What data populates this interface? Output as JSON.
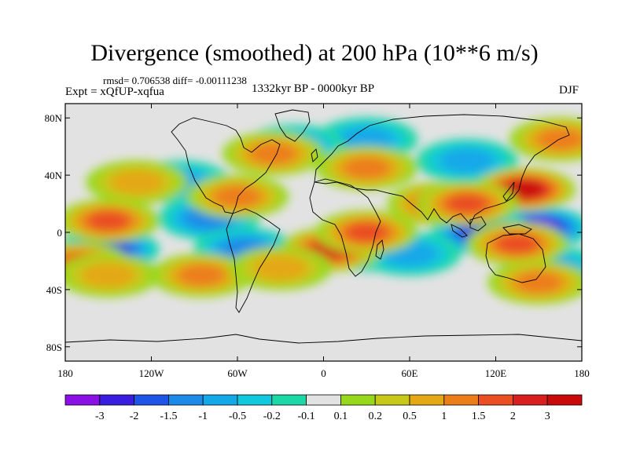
{
  "title": "Divergence (smoothed) at 200 hPa (10**6 m/s)",
  "stats": "rmsd= 0.706538  diff= -0.00111238",
  "experiment": "Expt = xQfUP-xqfua",
  "period": "1332kyr BP - 0000kyr BP",
  "season": "DJF",
  "x_ticks": [
    "180",
    "120W",
    "60W",
    "0",
    "60E",
    "120E",
    "180"
  ],
  "y_ticks": [
    "80N",
    "40N",
    "0",
    "40S",
    "80S"
  ],
  "colorbar": {
    "labels": [
      "-3",
      "-2",
      "-1.5",
      "-1",
      "-0.5",
      "-0.2",
      "-0.1",
      "0.1",
      "0.2",
      "0.5",
      "1",
      "1.5",
      "2",
      "3"
    ],
    "colors": [
      "#8a10e6",
      "#3a1ee0",
      "#1e55e6",
      "#1b8ae8",
      "#13a8e8",
      "#12c8dc",
      "#1bd8a6",
      "#e2e2e2",
      "#98d81c",
      "#c8c81a",
      "#e4a814",
      "#ec7e1a",
      "#ea4e22",
      "#d81e1e",
      "#c80a0a"
    ]
  },
  "chart_data": {
    "type": "heatmap",
    "title": "Divergence (smoothed) at 200 hPa (10**6 m/s)",
    "units": "10**6 m/s",
    "x_range": [
      -180,
      180
    ],
    "y_range": [
      -90,
      90
    ],
    "levels": [
      -3,
      -2,
      -1.5,
      -1,
      -0.5,
      -0.2,
      -0.1,
      0.1,
      0.2,
      0.5,
      1,
      1.5,
      2,
      3
    ],
    "anomalies": [
      {
        "lon": 150,
        "lat": 3,
        "value": -3
      },
      {
        "lon": 110,
        "lat": 0,
        "value": -2.2
      },
      {
        "lon": -150,
        "lat": -12,
        "value": -2.5
      },
      {
        "lon": 30,
        "lat": -12,
        "value": -1.5
      },
      {
        "lon": -80,
        "lat": 10,
        "value": -1.2
      },
      {
        "lon": -55,
        "lat": -12,
        "value": -1
      },
      {
        "lon": -100,
        "lat": 35,
        "value": -0.8
      },
      {
        "lon": 60,
        "lat": -15,
        "value": -0.8
      },
      {
        "lon": 100,
        "lat": 50,
        "value": -0.8
      },
      {
        "lon": 30,
        "lat": 65,
        "value": -0.6
      },
      {
        "lon": 160,
        "lat": -25,
        "value": -0.7
      },
      {
        "lon": -20,
        "lat": 60,
        "value": -0.6
      },
      {
        "lon": 140,
        "lat": 30,
        "value": 3
      },
      {
        "lon": 5,
        "lat": -12,
        "value": 2.2
      },
      {
        "lon": 30,
        "lat": 0,
        "value": 1.8
      },
      {
        "lon": -150,
        "lat": 8,
        "value": 1.8
      },
      {
        "lon": -170,
        "lat": -22,
        "value": 1.6
      },
      {
        "lon": 135,
        "lat": -8,
        "value": 1.5
      },
      {
        "lon": 80,
        "lat": 20,
        "value": 1.5
      },
      {
        "lon": 100,
        "lat": 20,
        "value": 1.6
      },
      {
        "lon": -60,
        "lat": 25,
        "value": 1.2
      },
      {
        "lon": 30,
        "lat": 45,
        "value": 1.2
      },
      {
        "lon": -35,
        "lat": 55,
        "value": 1.2
      },
      {
        "lon": 165,
        "lat": 65,
        "value": 1.2
      },
      {
        "lon": -85,
        "lat": -30,
        "value": 1.2
      },
      {
        "lon": -130,
        "lat": 35,
        "value": 0.8
      },
      {
        "lon": -150,
        "lat": -30,
        "value": 0.8
      },
      {
        "lon": 150,
        "lat": -35,
        "value": 1
      },
      {
        "lon": -30,
        "lat": -25,
        "value": 0.9
      }
    ]
  }
}
